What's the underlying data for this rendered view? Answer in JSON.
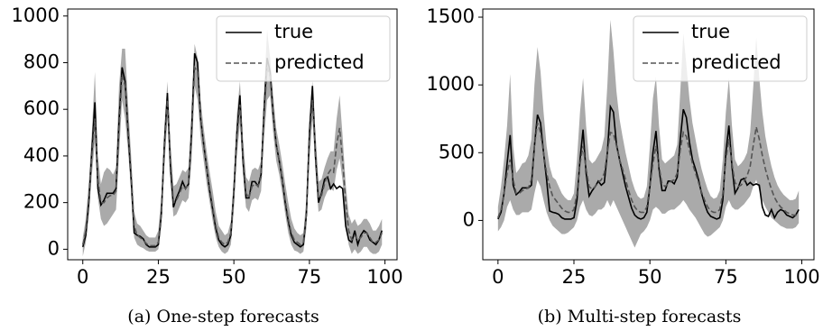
{
  "chart_data": [
    {
      "type": "line",
      "caption": "(a) One-step forecasts",
      "x": [
        0,
        1,
        2,
        3,
        4,
        5,
        6,
        7,
        8,
        9,
        10,
        11,
        12,
        13,
        14,
        15,
        16,
        17,
        18,
        19,
        20,
        21,
        22,
        23,
        24,
        25,
        26,
        27,
        28,
        29,
        30,
        31,
        32,
        33,
        34,
        35,
        36,
        37,
        38,
        39,
        40,
        41,
        42,
        43,
        44,
        45,
        46,
        47,
        48,
        49,
        50,
        51,
        52,
        53,
        54,
        55,
        56,
        57,
        58,
        59,
        60,
        61,
        62,
        63,
        64,
        65,
        66,
        67,
        68,
        69,
        70,
        71,
        72,
        73,
        74,
        75,
        76,
        77,
        78,
        79,
        80,
        81,
        82,
        83,
        84,
        85,
        86,
        87,
        88,
        89,
        90,
        91,
        92,
        93,
        94,
        95,
        96,
        97,
        98,
        99
      ],
      "xlim": [
        -5,
        104
      ],
      "xticks": [
        0,
        25,
        50,
        75,
        100
      ],
      "ylim": [
        -45,
        1030
      ],
      "yticks": [
        0,
        200,
        400,
        600,
        800,
        1000
      ],
      "legend": "upper right",
      "band_color": "#aaaaaa",
      "band_lower": [
        -30,
        30,
        150,
        320,
        460,
        220,
        130,
        100,
        110,
        130,
        150,
        170,
        400,
        640,
        560,
        420,
        250,
        50,
        20,
        10,
        5,
        -5,
        -10,
        -10,
        -10,
        0,
        100,
        350,
        560,
        300,
        140,
        150,
        180,
        210,
        200,
        220,
        380,
        700,
        640,
        480,
        380,
        280,
        200,
        120,
        50,
        10,
        -10,
        -20,
        -10,
        20,
        170,
        400,
        540,
        330,
        180,
        160,
        210,
        220,
        210,
        250,
        480,
        640,
        660,
        500,
        380,
        320,
        240,
        150,
        70,
        20,
        -5,
        -10,
        -20,
        -10,
        90,
        380,
        560,
        340,
        160,
        170,
        220,
        250,
        260,
        250,
        340,
        390,
        290,
        120,
        20,
        -20,
        0,
        -20,
        -10,
        10,
        10,
        -10,
        -20,
        -20,
        -10,
        20
      ],
      "band_upper": [
        50,
        130,
        290,
        500,
        760,
        400,
        280,
        330,
        350,
        340,
        320,
        350,
        700,
        860,
        860,
        620,
        400,
        160,
        110,
        100,
        80,
        60,
        50,
        50,
        50,
        80,
        230,
        520,
        720,
        460,
        270,
        280,
        310,
        340,
        330,
        350,
        600,
        880,
        820,
        640,
        520,
        420,
        330,
        250,
        160,
        100,
        80,
        60,
        70,
        120,
        310,
        580,
        720,
        480,
        310,
        290,
        340,
        350,
        340,
        380,
        680,
        940,
        820,
        660,
        520,
        450,
        370,
        280,
        200,
        130,
        90,
        70,
        60,
        70,
        220,
        560,
        720,
        500,
        290,
        300,
        350,
        390,
        420,
        420,
        560,
        660,
        480,
        280,
        150,
        110,
        130,
        100,
        110,
        130,
        130,
        110,
        80,
        80,
        100,
        130
      ],
      "series": [
        {
          "name": "true",
          "color": "#000000",
          "dash": false,
          "values": [
            10,
            60,
            200,
            420,
            630,
            260,
            190,
            210,
            240,
            240,
            240,
            260,
            550,
            780,
            720,
            500,
            300,
            70,
            60,
            55,
            45,
            20,
            10,
            10,
            10,
            20,
            150,
            450,
            670,
            350,
            180,
            220,
            250,
            290,
            260,
            280,
            500,
            840,
            800,
            560,
            450,
            350,
            250,
            170,
            90,
            40,
            20,
            10,
            20,
            60,
            250,
            500,
            660,
            380,
            220,
            220,
            290,
            290,
            270,
            320,
            600,
            820,
            760,
            580,
            450,
            380,
            300,
            200,
            120,
            60,
            30,
            20,
            10,
            20,
            150,
            500,
            700,
            400,
            200,
            240,
            300,
            310,
            260,
            280,
            260,
            270,
            260,
            100,
            40,
            30,
            80,
            20,
            60,
            80,
            70,
            40,
            30,
            20,
            40,
            80
          ]
        },
        {
          "name": "predicted",
          "color": "#555555",
          "dash": true,
          "values": [
            20,
            80,
            220,
            400,
            560,
            300,
            200,
            200,
            220,
            230,
            230,
            250,
            520,
            750,
            700,
            520,
            320,
            100,
            60,
            50,
            40,
            25,
            15,
            15,
            15,
            30,
            160,
            430,
            640,
            380,
            200,
            210,
            240,
            270,
            260,
            280,
            480,
            780,
            760,
            560,
            450,
            350,
            260,
            180,
            100,
            50,
            30,
            20,
            30,
            70,
            240,
            480,
            620,
            400,
            240,
            220,
            270,
            280,
            270,
            310,
            580,
            780,
            740,
            580,
            450,
            380,
            300,
            210,
            130,
            70,
            40,
            30,
            20,
            30,
            150,
            470,
            640,
            420,
            220,
            230,
            280,
            320,
            340,
            330,
            450,
            520,
            380,
            200,
            80,
            40,
            60,
            40,
            50,
            70,
            70,
            50,
            30,
            30,
            40,
            70
          ]
        }
      ]
    },
    {
      "type": "line",
      "caption": "(b) Multi-step forecasts",
      "x": [
        0,
        1,
        2,
        3,
        4,
        5,
        6,
        7,
        8,
        9,
        10,
        11,
        12,
        13,
        14,
        15,
        16,
        17,
        18,
        19,
        20,
        21,
        22,
        23,
        24,
        25,
        26,
        27,
        28,
        29,
        30,
        31,
        32,
        33,
        34,
        35,
        36,
        37,
        38,
        39,
        40,
        41,
        42,
        43,
        44,
        45,
        46,
        47,
        48,
        49,
        50,
        51,
        52,
        53,
        54,
        55,
        56,
        57,
        58,
        59,
        60,
        61,
        62,
        63,
        64,
        65,
        66,
        67,
        68,
        69,
        70,
        71,
        72,
        73,
        74,
        75,
        76,
        77,
        78,
        79,
        80,
        81,
        82,
        83,
        84,
        85,
        86,
        87,
        88,
        89,
        90,
        91,
        92,
        93,
        94,
        95,
        96,
        97,
        98,
        99
      ],
      "xlim": [
        -5,
        104
      ],
      "xticks": [
        0,
        25,
        50,
        75,
        100
      ],
      "ylim": [
        -290,
        1560
      ],
      "yticks": [
        0,
        500,
        1000,
        1500
      ],
      "legend": "upper right",
      "band_color": "#aaaaaa",
      "band_lower": [
        -80,
        -50,
        0,
        100,
        150,
        80,
        40,
        40,
        60,
        60,
        60,
        80,
        200,
        300,
        250,
        150,
        60,
        0,
        -40,
        -60,
        -80,
        -100,
        -100,
        -90,
        -70,
        -50,
        0,
        100,
        150,
        80,
        40,
        30,
        50,
        80,
        80,
        100,
        150,
        100,
        150,
        100,
        50,
        0,
        -50,
        -100,
        -150,
        -200,
        -150,
        -100,
        -80,
        -50,
        0,
        80,
        100,
        80,
        50,
        50,
        70,
        80,
        80,
        100,
        120,
        150,
        120,
        80,
        50,
        20,
        -20,
        -60,
        -100,
        -120,
        -110,
        -90,
        -70,
        -50,
        0,
        100,
        150,
        100,
        80,
        80,
        100,
        120,
        150,
        180,
        250,
        300,
        220,
        150,
        100,
        60,
        20,
        0,
        -20,
        -40,
        -50,
        -60,
        -60,
        -60,
        -50,
        -20
      ],
      "band_upper": [
        100,
        250,
        450,
        700,
        1080,
        550,
        350,
        380,
        420,
        430,
        480,
        600,
        1000,
        1280,
        1100,
        800,
        550,
        400,
        320,
        300,
        250,
        200,
        170,
        150,
        150,
        200,
        450,
        800,
        1050,
        700,
        450,
        420,
        440,
        480,
        520,
        620,
        1000,
        1480,
        1250,
        950,
        750,
        620,
        500,
        400,
        300,
        230,
        180,
        160,
        170,
        250,
        550,
        900,
        1060,
        700,
        450,
        420,
        440,
        460,
        480,
        560,
        950,
        1380,
        1150,
        900,
        720,
        600,
        480,
        380,
        300,
        230,
        180,
        160,
        170,
        220,
        450,
        800,
        1050,
        700,
        450,
        400,
        420,
        450,
        500,
        650,
        980,
        1350,
        1050,
        800,
        620,
        500,
        400,
        320,
        260,
        220,
        190,
        170,
        150,
        150,
        160,
        220
      ],
      "series": [
        {
          "name": "true",
          "color": "#000000",
          "dash": false,
          "values": [
            10,
            60,
            200,
            420,
            630,
            260,
            190,
            210,
            240,
            240,
            240,
            260,
            550,
            780,
            720,
            500,
            300,
            70,
            60,
            55,
            45,
            20,
            10,
            10,
            10,
            20,
            150,
            450,
            670,
            350,
            180,
            220,
            250,
            290,
            260,
            280,
            500,
            840,
            800,
            560,
            450,
            350,
            250,
            170,
            90,
            40,
            20,
            10,
            20,
            60,
            250,
            500,
            660,
            380,
            220,
            220,
            290,
            290,
            270,
            320,
            600,
            820,
            760,
            580,
            450,
            380,
            300,
            200,
            120,
            60,
            30,
            20,
            10,
            20,
            150,
            500,
            700,
            400,
            200,
            240,
            300,
            310,
            260,
            280,
            260,
            270,
            260,
            100,
            40,
            30,
            80,
            20,
            60,
            80,
            70,
            40,
            30,
            20,
            40,
            80
          ]
        },
        {
          "name": "predicted",
          "color": "#555555",
          "dash": true,
          "values": [
            20,
            80,
            200,
            350,
            450,
            300,
            200,
            200,
            220,
            230,
            240,
            300,
            550,
            720,
            650,
            500,
            350,
            250,
            180,
            150,
            120,
            90,
            70,
            60,
            60,
            80,
            200,
            420,
            550,
            380,
            250,
            230,
            250,
            280,
            300,
            350,
            500,
            650,
            640,
            550,
            450,
            380,
            300,
            220,
            150,
            100,
            70,
            60,
            60,
            100,
            250,
            420,
            550,
            400,
            270,
            250,
            270,
            290,
            300,
            350,
            520,
            650,
            620,
            520,
            420,
            350,
            280,
            210,
            150,
            100,
            70,
            60,
            60,
            80,
            200,
            450,
            600,
            420,
            280,
            250,
            260,
            290,
            330,
            400,
            550,
            690,
            600,
            480,
            380,
            300,
            230,
            170,
            130,
            100,
            80,
            60,
            50,
            40,
            40,
            40
          ]
        }
      ]
    }
  ]
}
